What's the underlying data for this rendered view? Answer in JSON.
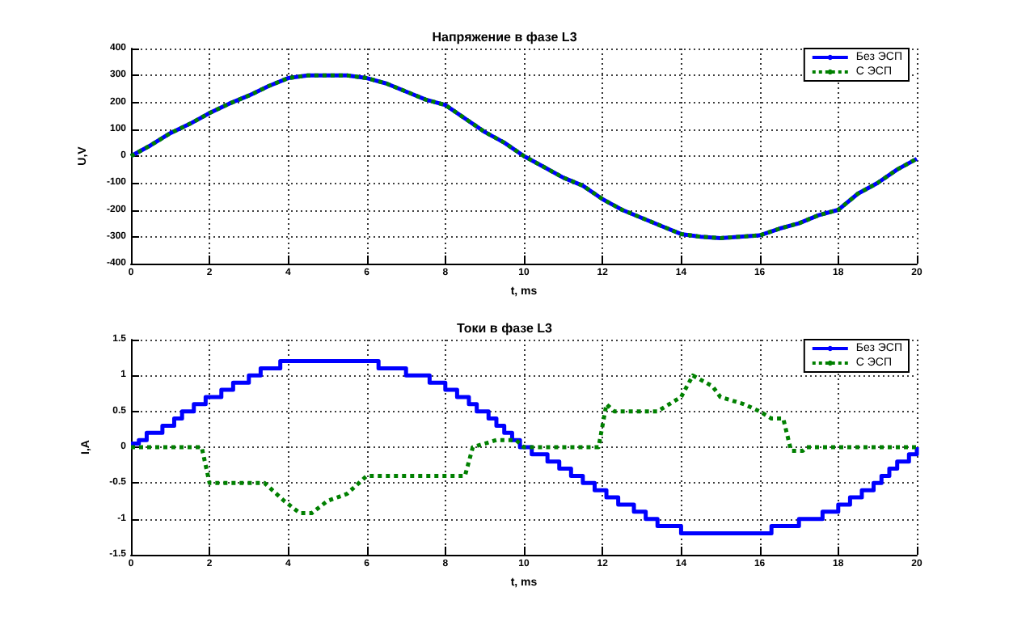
{
  "chart_data": [
    {
      "type": "line",
      "title": "Напряжение в фазе L3",
      "xlabel": "t, ms",
      "ylabel": "U,V",
      "xlim": [
        0,
        20
      ],
      "xticks": [
        0,
        2,
        4,
        6,
        8,
        10,
        12,
        14,
        16,
        18,
        20
      ],
      "ylim": [
        -400,
        400
      ],
      "yticks": [
        -400,
        -300,
        -200,
        -100,
        0,
        100,
        200,
        300,
        400
      ],
      "grid": true,
      "legend": "top right",
      "marker": "none",
      "x": [
        0,
        0.5,
        1,
        1.5,
        2,
        2.5,
        3,
        3.5,
        4,
        4.5,
        5,
        5.5,
        6,
        6.5,
        7,
        7.5,
        8,
        8.5,
        9,
        9.5,
        10,
        10.5,
        11,
        11.5,
        12,
        12.5,
        13,
        13.5,
        14,
        14.5,
        15,
        15.5,
        16,
        16.5,
        17,
        17.5,
        18,
        18.5,
        19,
        19.5,
        20
      ],
      "series": [
        {
          "name": "Без ЭСП",
          "color": "#0000ff",
          "line_style": "solid",
          "values": [
            0,
            40,
            85,
            120,
            160,
            195,
            225,
            260,
            290,
            300,
            300,
            300,
            290,
            270,
            240,
            210,
            190,
            140,
            90,
            50,
            0,
            -40,
            -80,
            -110,
            -160,
            -200,
            -230,
            -260,
            -290,
            -300,
            -305,
            -300,
            -295,
            -270,
            -250,
            -220,
            -200,
            -140,
            -100,
            -50,
            -10
          ]
        },
        {
          "name": "С ЭСП",
          "color": "#008000",
          "line_style": "dotted",
          "values": [
            0,
            40,
            85,
            120,
            160,
            195,
            225,
            260,
            290,
            300,
            300,
            300,
            290,
            270,
            240,
            210,
            190,
            140,
            90,
            50,
            0,
            -40,
            -80,
            -110,
            -160,
            -200,
            -230,
            -260,
            -290,
            -300,
            -305,
            -300,
            -295,
            -270,
            -250,
            -220,
            -200,
            -140,
            -100,
            -50,
            -10
          ]
        }
      ]
    },
    {
      "type": "line",
      "title": "Токи в фазе L3",
      "xlabel": "t, ms",
      "ylabel": "I,A",
      "xlim": [
        0,
        20
      ],
      "xticks": [
        0,
        2,
        4,
        6,
        8,
        10,
        12,
        14,
        16,
        18,
        20
      ],
      "ylim": [
        -1.5,
        1.5
      ],
      "yticks": [
        -1.5,
        -1,
        -0.5,
        0,
        0.5,
        1,
        1.5
      ],
      "grid": true,
      "legend": "top right",
      "marker": "none",
      "series": [
        {
          "name": "Без ЭСП",
          "type": "step",
          "color": "#0000ff",
          "line_style": "solid",
          "x": [
            0,
            0.2,
            0.4,
            0.8,
            1.1,
            1.3,
            1.6,
            1.9,
            2.3,
            2.6,
            3.0,
            3.3,
            3.8,
            6.3,
            7.0,
            7.6,
            8.0,
            8.3,
            8.6,
            8.8,
            9.1,
            9.3,
            9.5,
            9.7,
            9.9,
            10.2,
            10.6,
            10.9,
            11.2,
            11.5,
            11.8,
            12.1,
            12.4,
            12.8,
            13.1,
            13.4,
            14.0,
            16.3,
            17.0,
            17.6,
            18.0,
            18.3,
            18.6,
            18.9,
            19.1,
            19.3,
            19.5,
            19.8,
            20
          ],
          "values": [
            0.05,
            0.1,
            0.2,
            0.3,
            0.4,
            0.5,
            0.6,
            0.7,
            0.8,
            0.9,
            1.0,
            1.1,
            1.2,
            1.1,
            1.0,
            0.9,
            0.8,
            0.7,
            0.6,
            0.5,
            0.4,
            0.3,
            0.2,
            0.1,
            0,
            -0.1,
            -0.2,
            -0.3,
            -0.4,
            -0.5,
            -0.6,
            -0.7,
            -0.8,
            -0.9,
            -1.0,
            -1.1,
            -1.2,
            -1.1,
            -1.0,
            -0.9,
            -0.8,
            -0.7,
            -0.6,
            -0.5,
            -0.4,
            -0.3,
            -0.2,
            -0.1,
            0
          ]
        },
        {
          "name": "С ЭСП",
          "color": "#008000",
          "line_style": "dotted",
          "x": [
            0,
            1.8,
            2.0,
            3.4,
            3.9,
            4.3,
            4.6,
            5.0,
            5.5,
            5.8,
            6.0,
            8.5,
            8.7,
            9.0,
            9.3,
            9.8,
            10.0,
            11.9,
            12.1,
            12.3,
            13.4,
            14.0,
            14.3,
            14.8,
            15.0,
            15.6,
            16.0,
            16.3,
            16.6,
            16.8,
            17.1,
            17.2,
            20
          ],
          "values": [
            0,
            0,
            -0.5,
            -0.5,
            -0.75,
            -0.92,
            -0.92,
            -0.75,
            -0.65,
            -0.5,
            -0.4,
            -0.4,
            0,
            0.05,
            0.1,
            0.1,
            0,
            0,
            0.6,
            0.5,
            0.5,
            0.7,
            1.0,
            0.85,
            0.7,
            0.6,
            0.5,
            0.4,
            0.4,
            -0.05,
            -0.05,
            0,
            0
          ]
        }
      ]
    }
  ]
}
